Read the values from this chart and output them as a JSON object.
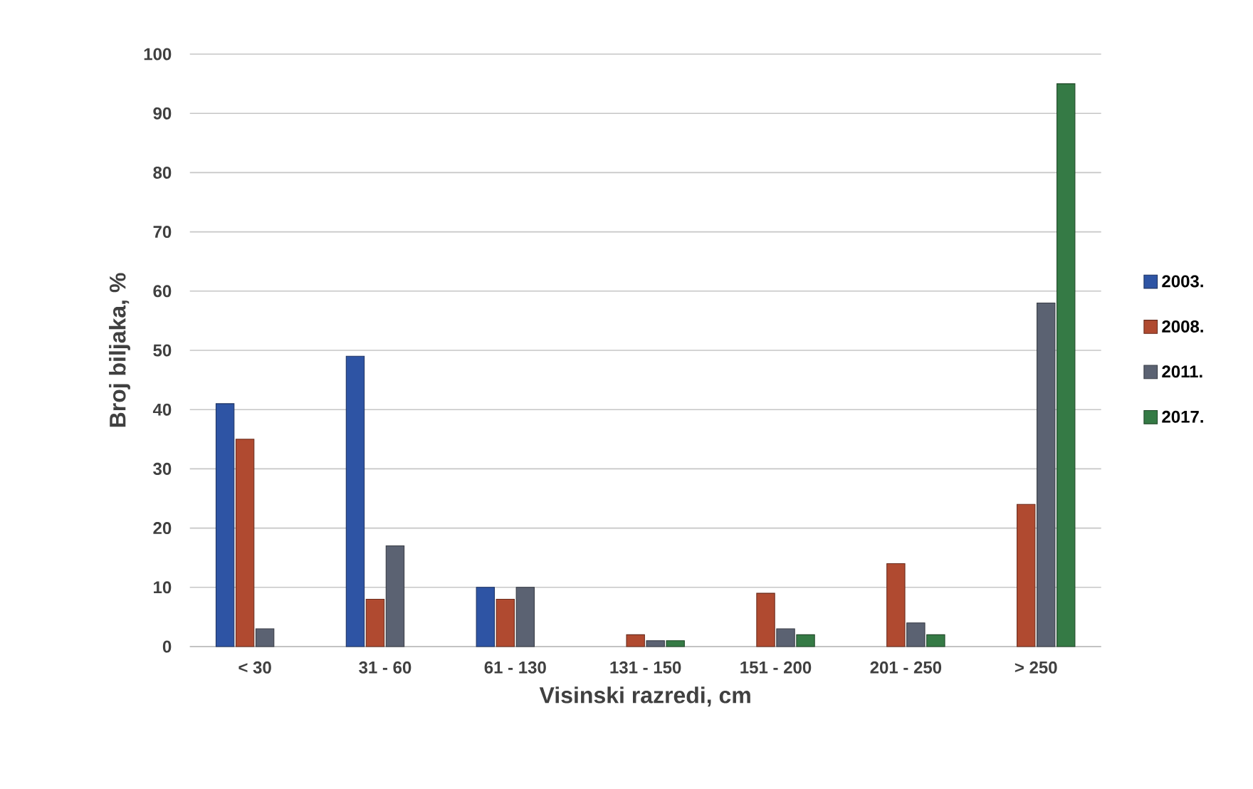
{
  "chart_data": {
    "type": "bar",
    "xlabel": "Visinski razredi, cm",
    "ylabel": "Broj biljaka, %",
    "categories": [
      "< 30",
      "31 - 60",
      "61 - 130",
      "131 - 150",
      "151 - 200",
      "201 - 250",
      "> 250"
    ],
    "series": [
      {
        "name": "2003.",
        "color": "#2e54a4",
        "values": [
          41,
          49,
          10,
          null,
          null,
          null,
          null
        ]
      },
      {
        "name": "2008.",
        "color": "#b04a30",
        "values": [
          35,
          8,
          8,
          2,
          9,
          14,
          24
        ]
      },
      {
        "name": "2011.",
        "color": "#5b6272",
        "values": [
          3,
          17,
          10,
          1,
          3,
          4,
          58
        ]
      },
      {
        "name": "2017.",
        "color": "#357a45",
        "values": [
          null,
          null,
          null,
          1,
          2,
          2,
          95
        ]
      }
    ],
    "ylim": [
      0,
      100
    ],
    "yticks": [
      0,
      10,
      20,
      30,
      40,
      50,
      60,
      70,
      80,
      90,
      100
    ],
    "grid": "y",
    "legend": "right"
  }
}
